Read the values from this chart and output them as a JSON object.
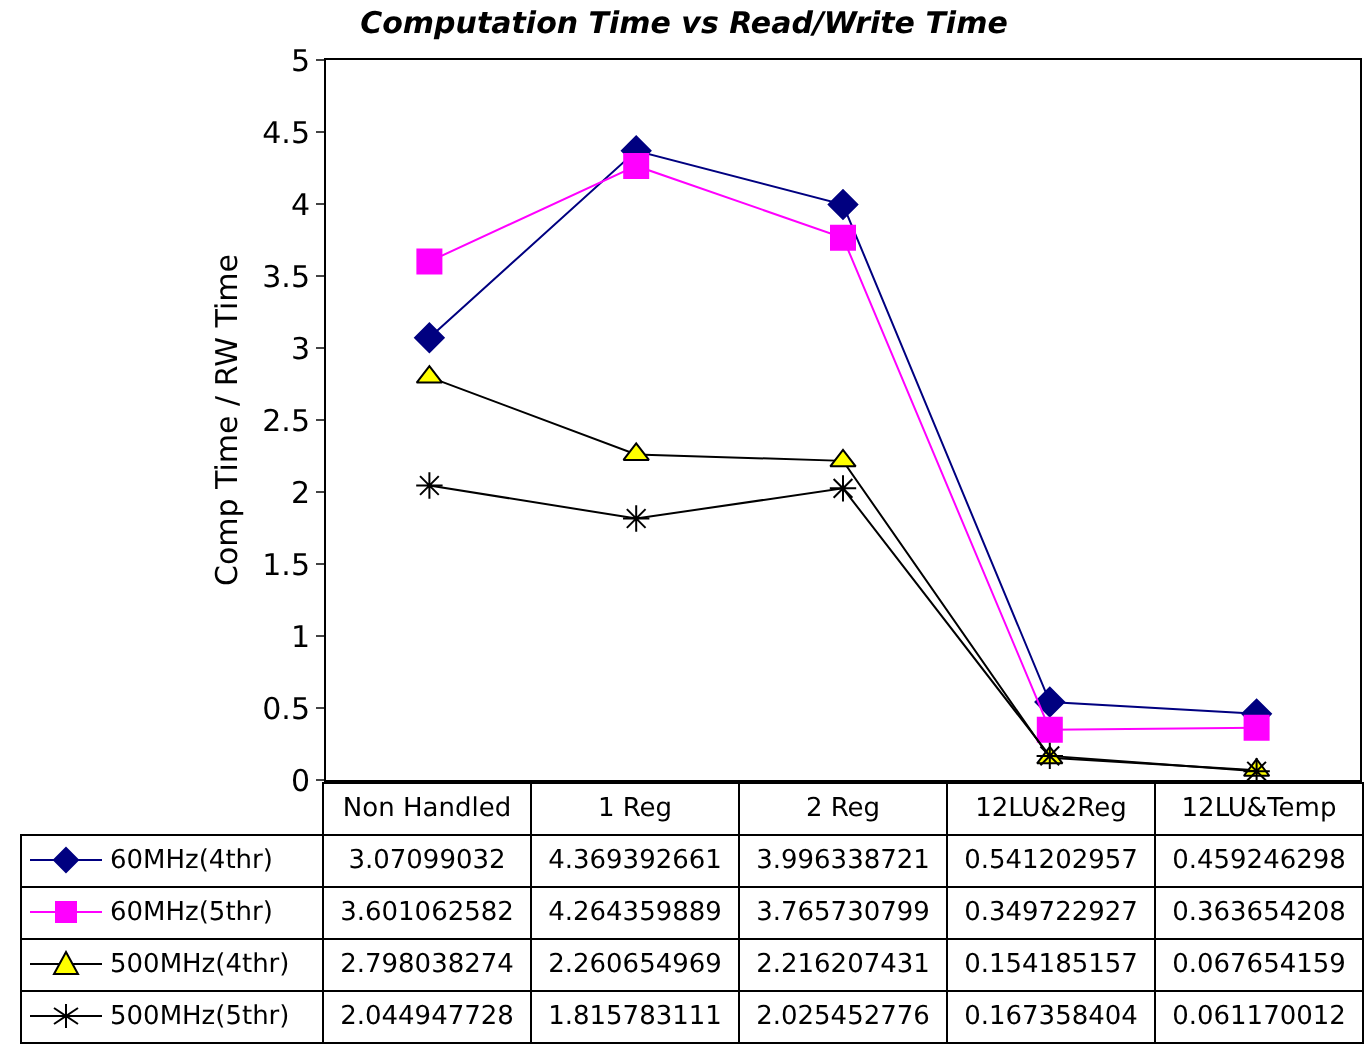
{
  "chart_data": {
    "type": "line",
    "title": "Computation Time vs Read/Write Time",
    "ylabel": "Comp Time / RW Time",
    "categories": [
      "Non Handled",
      "1 Reg",
      "2 Reg",
      "12LU&2Reg",
      "12LU&Temp"
    ],
    "series": [
      {
        "name": "60MHz(4thr)",
        "color": "#000080",
        "marker": "diamond",
        "values": [
          3.07099032,
          4.369392661,
          3.996338721,
          0.541202957,
          0.459246298
        ]
      },
      {
        "name": "60MHz(5thr)",
        "color": "#ff00ff",
        "marker": "square",
        "values": [
          3.601062582,
          4.264359889,
          3.765730799,
          0.349722927,
          0.363654208
        ]
      },
      {
        "name": "500MHz(4thr)",
        "color": "#000000",
        "marker": "triangle",
        "values": [
          2.798038274,
          2.260654969,
          2.216207431,
          0.154185157,
          0.067654159
        ]
      },
      {
        "name": "500MHz(5thr)",
        "color": "#000000",
        "marker": "cross",
        "values": [
          2.044947728,
          1.815783111,
          2.025452776,
          0.167358404,
          0.061170012
        ]
      }
    ],
    "ylim": [
      0,
      5
    ],
    "yticks": [
      0,
      0.5,
      1,
      1.5,
      2,
      2.5,
      3,
      3.5,
      4,
      4.5,
      5
    ],
    "grid": false,
    "legend": "bottom",
    "data_labels": true,
    "tick_labels": "y"
  }
}
